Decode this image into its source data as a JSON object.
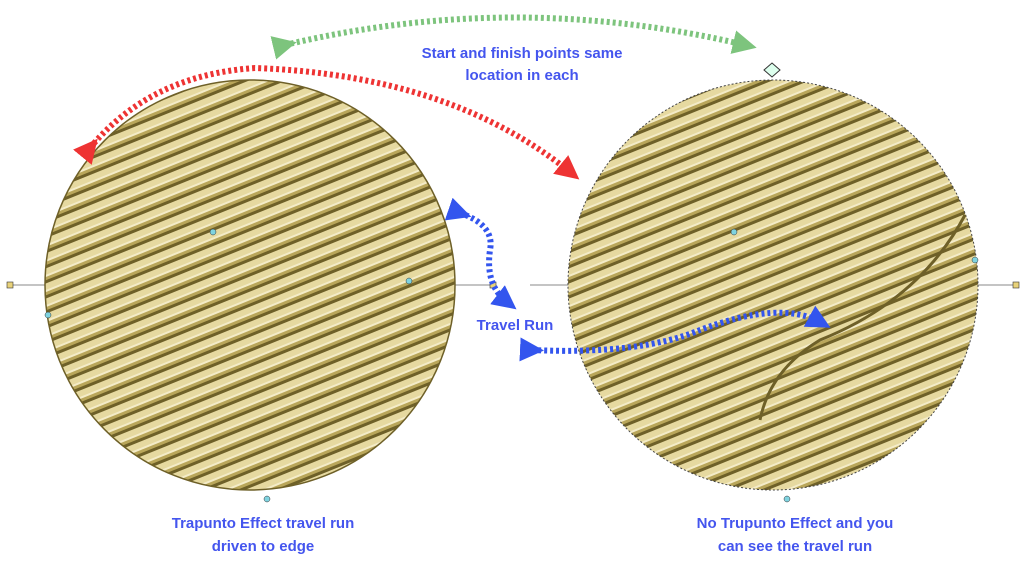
{
  "top_note": {
    "lines": [
      "Start and finish points same",
      "location in each"
    ]
  },
  "middle_note": "Travel Run",
  "left_caption": {
    "lines": [
      "Trapunto Effect travel run",
      "driven to edge"
    ]
  },
  "right_caption": {
    "lines": [
      "No Trupunto Effect and you",
      "can see the travel run"
    ]
  }
}
